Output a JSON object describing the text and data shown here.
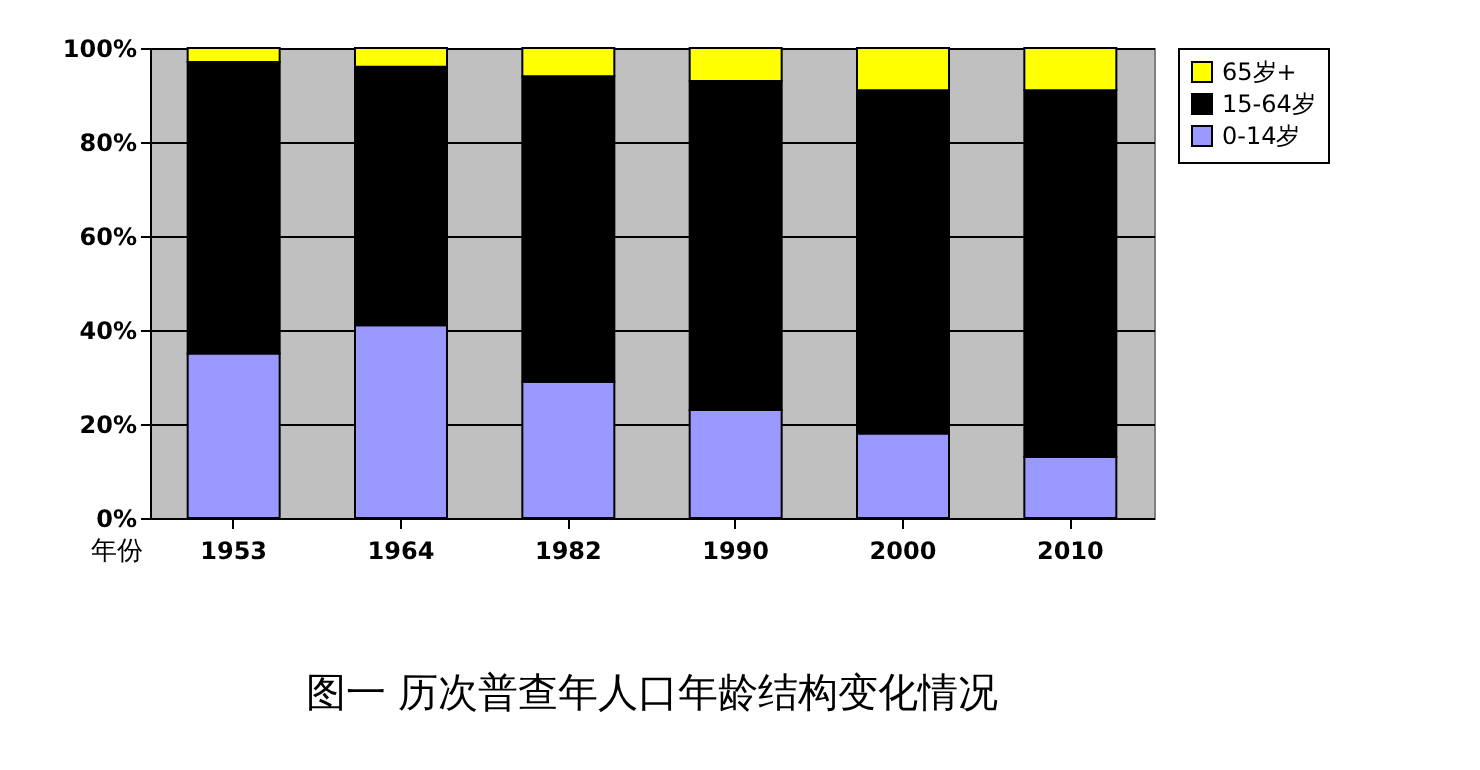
{
  "chart_data": {
    "type": "bar",
    "stacked": true,
    "title": "图一 历次普查年人口年龄结构变化情况",
    "xlabel": "年份",
    "categories": [
      "1953",
      "1964",
      "1982",
      "1990",
      "2000",
      "2010"
    ],
    "series": [
      {
        "name": "0-14岁",
        "color": "#9999ff",
        "values": [
          35,
          41,
          29,
          23,
          18,
          13
        ]
      },
      {
        "name": "15-64岁",
        "color": "#000000",
        "values": [
          62,
          55,
          65,
          70,
          73,
          78
        ]
      },
      {
        "name": "65岁+",
        "color": "#ffff00",
        "values": [
          3,
          4,
          6,
          7,
          9,
          9
        ]
      }
    ],
    "ylim": [
      0,
      100
    ],
    "yticks": [
      {
        "value": 0,
        "label": "0%"
      },
      {
        "value": 20,
        "label": "20%"
      },
      {
        "value": 40,
        "label": "40%"
      },
      {
        "value": 60,
        "label": "60%"
      },
      {
        "value": 80,
        "label": "80%"
      },
      {
        "value": 100,
        "label": "100%"
      }
    ],
    "grid": "y",
    "legend": "right"
  }
}
